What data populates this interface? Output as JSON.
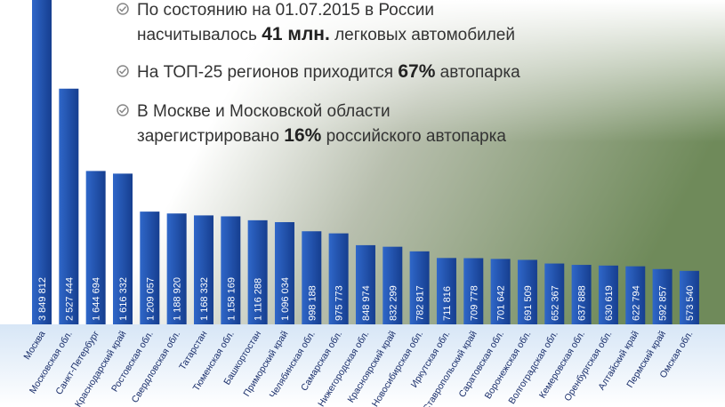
{
  "chart_data": {
    "type": "bar",
    "annotations": [
      [
        [
          "По состоянию на 01.07.2015 в России"
        ],
        [
          "насчитывалось ",
          "41 млн.",
          " легковых автомобилей"
        ]
      ],
      [
        [
          "На ТОП-25 регионов приходится ",
          "67%",
          " автопарка"
        ]
      ],
      [
        [
          "В Москве и Московской области"
        ],
        [
          "зарегистрировано ",
          "16%",
          " российского автопарка"
        ]
      ]
    ],
    "categories": [
      "Москва",
      "Московская обл.",
      "Санкт-Петербург",
      "Краснодарский край",
      "Ростовская обл.",
      "Свердловская обл.",
      "Татарстан",
      "Тюменская обл.",
      "Башкортостан",
      "Приморский край",
      "Челябинская обл.",
      "Самарская обл.",
      "Нижегородская обл.",
      "Красноярский край",
      "Новосибирская обл.",
      "Иркутская обл.",
      "Ставропольский край",
      "Саратовская обл.",
      "Воронежская обл.",
      "Волгоградская обл.",
      "Кемеровская обл.",
      "Оренбургская обл.",
      "Алтайский край",
      "Пермский край",
      "Омская обл."
    ],
    "values": [
      3849812,
      2527444,
      1644694,
      1616332,
      1209057,
      1188920,
      1168332,
      1158169,
      1116288,
      1096034,
      998188,
      975773,
      848974,
      832299,
      782817,
      711816,
      709778,
      701642,
      691509,
      652367,
      637888,
      630619,
      622794,
      592857,
      573540
    ],
    "value_labels": [
      "3 849 812",
      "2 527 444",
      "1 644 694",
      "1 616 332",
      "1 209 057",
      "1 188 920",
      "1 168 332",
      "1 158 169",
      "1 116 288",
      "1 096 034",
      "998 188",
      "975 773",
      "848 974",
      "832 299",
      "782 817",
      "711 816",
      "709 778",
      "701 642",
      "691 509",
      "652 367",
      "637 888",
      "630 619",
      "622 794",
      "592 857",
      "573 540"
    ],
    "color": "#1f4fa8"
  }
}
